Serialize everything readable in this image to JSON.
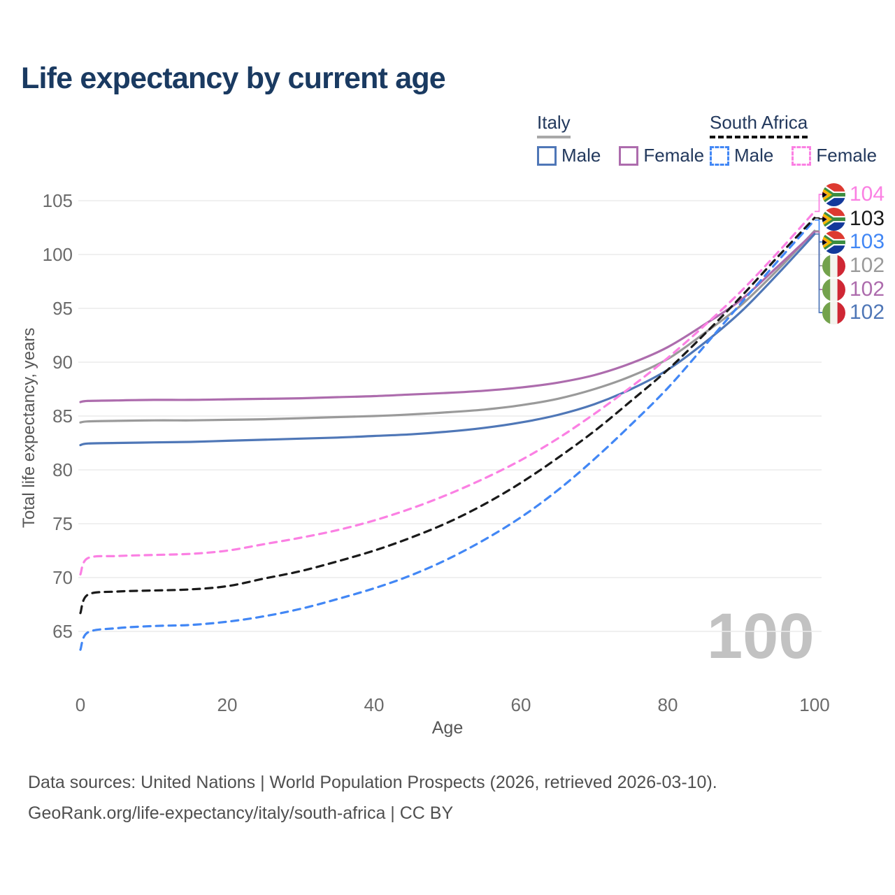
{
  "title": "Life expectancy by current age",
  "watermark": "100",
  "legend": {
    "italy": {
      "label": "Italy",
      "male": "Male",
      "female": "Female",
      "male_color": "#4f77b7",
      "female_color": "#ad6cad",
      "underline_color": "#a8a8a8",
      "line_style": "solid"
    },
    "south_africa": {
      "label": "South Africa",
      "male": "Male",
      "female": "Female",
      "male_color": "#4287f5",
      "female_color": "#fb80e3",
      "underline_color": "#111111",
      "line_style": "dashed"
    }
  },
  "footer": {
    "line1": "Data sources: United Nations | World Population Prospects (2026, retrieved 2026-03-10).",
    "line2": "GeoRank.org/life-expectancy/italy/south-africa | CC BY"
  },
  "chart_data": {
    "type": "line",
    "title": "Life expectancy by current age",
    "xlabel": "Age",
    "ylabel": "Total life expectancy, years",
    "xlim": [
      0,
      100
    ],
    "ylim": [
      63,
      105.5
    ],
    "xticks": [
      0,
      20,
      40,
      60,
      80,
      100
    ],
    "yticks": [
      65,
      70,
      75,
      80,
      85,
      90,
      95,
      100,
      105
    ],
    "grid": true,
    "legend_position": "top-right",
    "ages": [
      0,
      1,
      5,
      10,
      15,
      20,
      25,
      30,
      35,
      40,
      45,
      50,
      55,
      60,
      65,
      70,
      75,
      80,
      85,
      90,
      95,
      100
    ],
    "series": [
      {
        "id": "italy-total",
        "name": "Italy",
        "flag": "it",
        "dashed": false,
        "color": "#9a9a9a",
        "end_label": "102",
        "values": [
          84.4,
          84.5,
          84.55,
          84.6,
          84.6,
          84.65,
          84.7,
          84.8,
          84.9,
          85.0,
          85.15,
          85.35,
          85.6,
          86.0,
          86.6,
          87.5,
          88.7,
          90.3,
          92.7,
          95.3,
          98.6,
          102.2
        ]
      },
      {
        "id": "italy-female",
        "name": "Italy Female",
        "flag": "it",
        "dashed": false,
        "color": "#ad6cad",
        "end_label": "102",
        "values": [
          86.3,
          86.4,
          86.45,
          86.5,
          86.5,
          86.55,
          86.6,
          86.65,
          86.75,
          86.85,
          87.0,
          87.15,
          87.35,
          87.65,
          88.1,
          88.8,
          89.9,
          91.4,
          93.5,
          95.8,
          98.9,
          102.1
        ]
      },
      {
        "id": "italy-male",
        "name": "Italy Male",
        "flag": "it",
        "dashed": false,
        "color": "#4f77b7",
        "end_label": "102",
        "values": [
          82.3,
          82.45,
          82.5,
          82.55,
          82.6,
          82.7,
          82.8,
          82.9,
          83.0,
          83.15,
          83.3,
          83.55,
          83.9,
          84.4,
          85.1,
          86.1,
          87.5,
          89.3,
          91.8,
          94.7,
          98.2,
          101.9
        ]
      },
      {
        "id": "sa-male",
        "name": "South Africa Male",
        "flag": "za",
        "dashed": true,
        "color": "#4287f5",
        "end_label": "103",
        "values": [
          63.3,
          64.9,
          65.3,
          65.5,
          65.6,
          65.9,
          66.4,
          67.1,
          68.0,
          69.0,
          70.2,
          71.7,
          73.5,
          75.6,
          78.1,
          81.0,
          84.2,
          87.6,
          91.5,
          95.5,
          99.4,
          103.2
        ]
      },
      {
        "id": "sa-total",
        "name": "South Africa",
        "flag": "za",
        "dashed": true,
        "color": "#1a1a1a",
        "end_label": "103",
        "values": [
          66.7,
          68.4,
          68.7,
          68.8,
          68.9,
          69.2,
          69.9,
          70.6,
          71.5,
          72.5,
          73.7,
          75.1,
          76.8,
          78.8,
          81.1,
          83.6,
          86.4,
          89.3,
          92.6,
          96.1,
          99.8,
          103.4
        ]
      },
      {
        "id": "sa-female",
        "name": "South Africa Female",
        "flag": "za",
        "dashed": true,
        "color": "#fb80e3",
        "end_label": "104",
        "values": [
          70.3,
          71.8,
          72.0,
          72.1,
          72.2,
          72.5,
          73.1,
          73.7,
          74.4,
          75.3,
          76.4,
          77.7,
          79.2,
          80.9,
          82.9,
          85.2,
          87.7,
          90.4,
          93.4,
          96.6,
          100.2,
          104.0
        ]
      }
    ],
    "end_labels": [
      {
        "value": "104",
        "flag": "za",
        "series": "sa-female",
        "color": "#fb80e3"
      },
      {
        "value": "103",
        "flag": "za",
        "series": "sa-total",
        "color": "#1a1a1a"
      },
      {
        "value": "103",
        "flag": "za",
        "series": "sa-male",
        "color": "#4287f5"
      },
      {
        "value": "102",
        "flag": "it",
        "series": "italy-total",
        "color": "#9a9a9a"
      },
      {
        "value": "102",
        "flag": "it",
        "series": "italy-female",
        "color": "#ad6cad"
      },
      {
        "value": "102",
        "flag": "it",
        "series": "italy-male",
        "color": "#4f77b7"
      }
    ]
  }
}
